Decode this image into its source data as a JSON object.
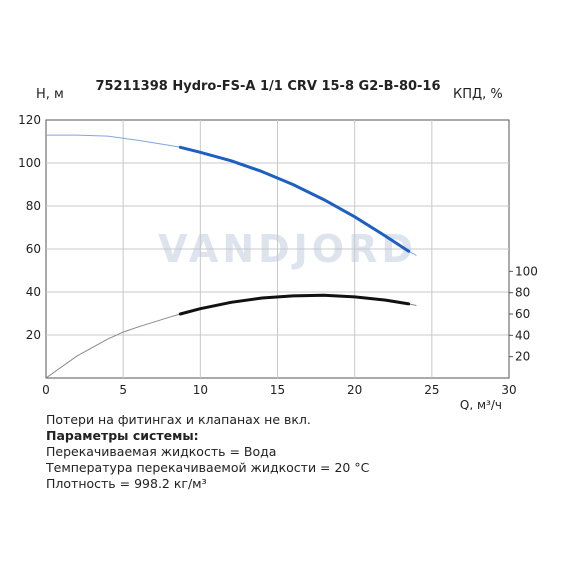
{
  "chart_data": {
    "type": "line",
    "title": "75211398 Hydro-FS-A 1/1 CRV 15-8 G2-B-80-16",
    "ylabel": "H, м",
    "y2label": "КПД, %",
    "xlabel": "Q, м³/ч",
    "xlim": [
      0,
      30
    ],
    "ylim": [
      0,
      120
    ],
    "y2lim": [
      0,
      120
    ],
    "xticks": [
      "0",
      "5",
      "10",
      "15",
      "20",
      "25",
      "30"
    ],
    "yticks": [
      "20",
      "40",
      "60",
      "80",
      "100",
      "120"
    ],
    "y2ticks": [
      "20",
      "40",
      "60",
      "80",
      "100"
    ],
    "grid": true,
    "watermark": "VANDJORD",
    "series": [
      {
        "id": "head",
        "axis": "left",
        "color": "#1e5fc2",
        "x": [
          0,
          2,
          4,
          5,
          6,
          8,
          8.7,
          10,
          12,
          14,
          16,
          18,
          20,
          22,
          23.5,
          24
        ],
        "y": [
          113,
          113,
          112.5,
          111.5,
          110.5,
          108.2,
          107.3,
          105,
          101,
          96,
          90,
          83,
          75,
          66,
          59,
          57
        ],
        "highlight_range": [
          8.7,
          23.5
        ]
      },
      {
        "id": "efficiency",
        "axis": "right",
        "color": "#111111",
        "x": [
          0,
          2,
          4,
          5,
          6,
          8,
          8.7,
          10,
          12,
          14,
          16,
          18,
          20,
          22,
          23.5,
          24
        ],
        "y": [
          0,
          20.5,
          36.5,
          43,
          48,
          57,
          60,
          65,
          71,
          75,
          77,
          77.5,
          76,
          73,
          69.5,
          68
        ],
        "highlight_range": [
          8.7,
          23.5
        ]
      }
    ]
  },
  "notes": {
    "line1": "Потери на фитингах и клапанах не вкл.",
    "line2": "Параметры системы:",
    "line3": "Перекачиваемая жидкость = Вода",
    "line4": "Температура перекачиваемой жидкости = 20 °C",
    "line5": "Плотность = 998.2 кг/м³"
  }
}
